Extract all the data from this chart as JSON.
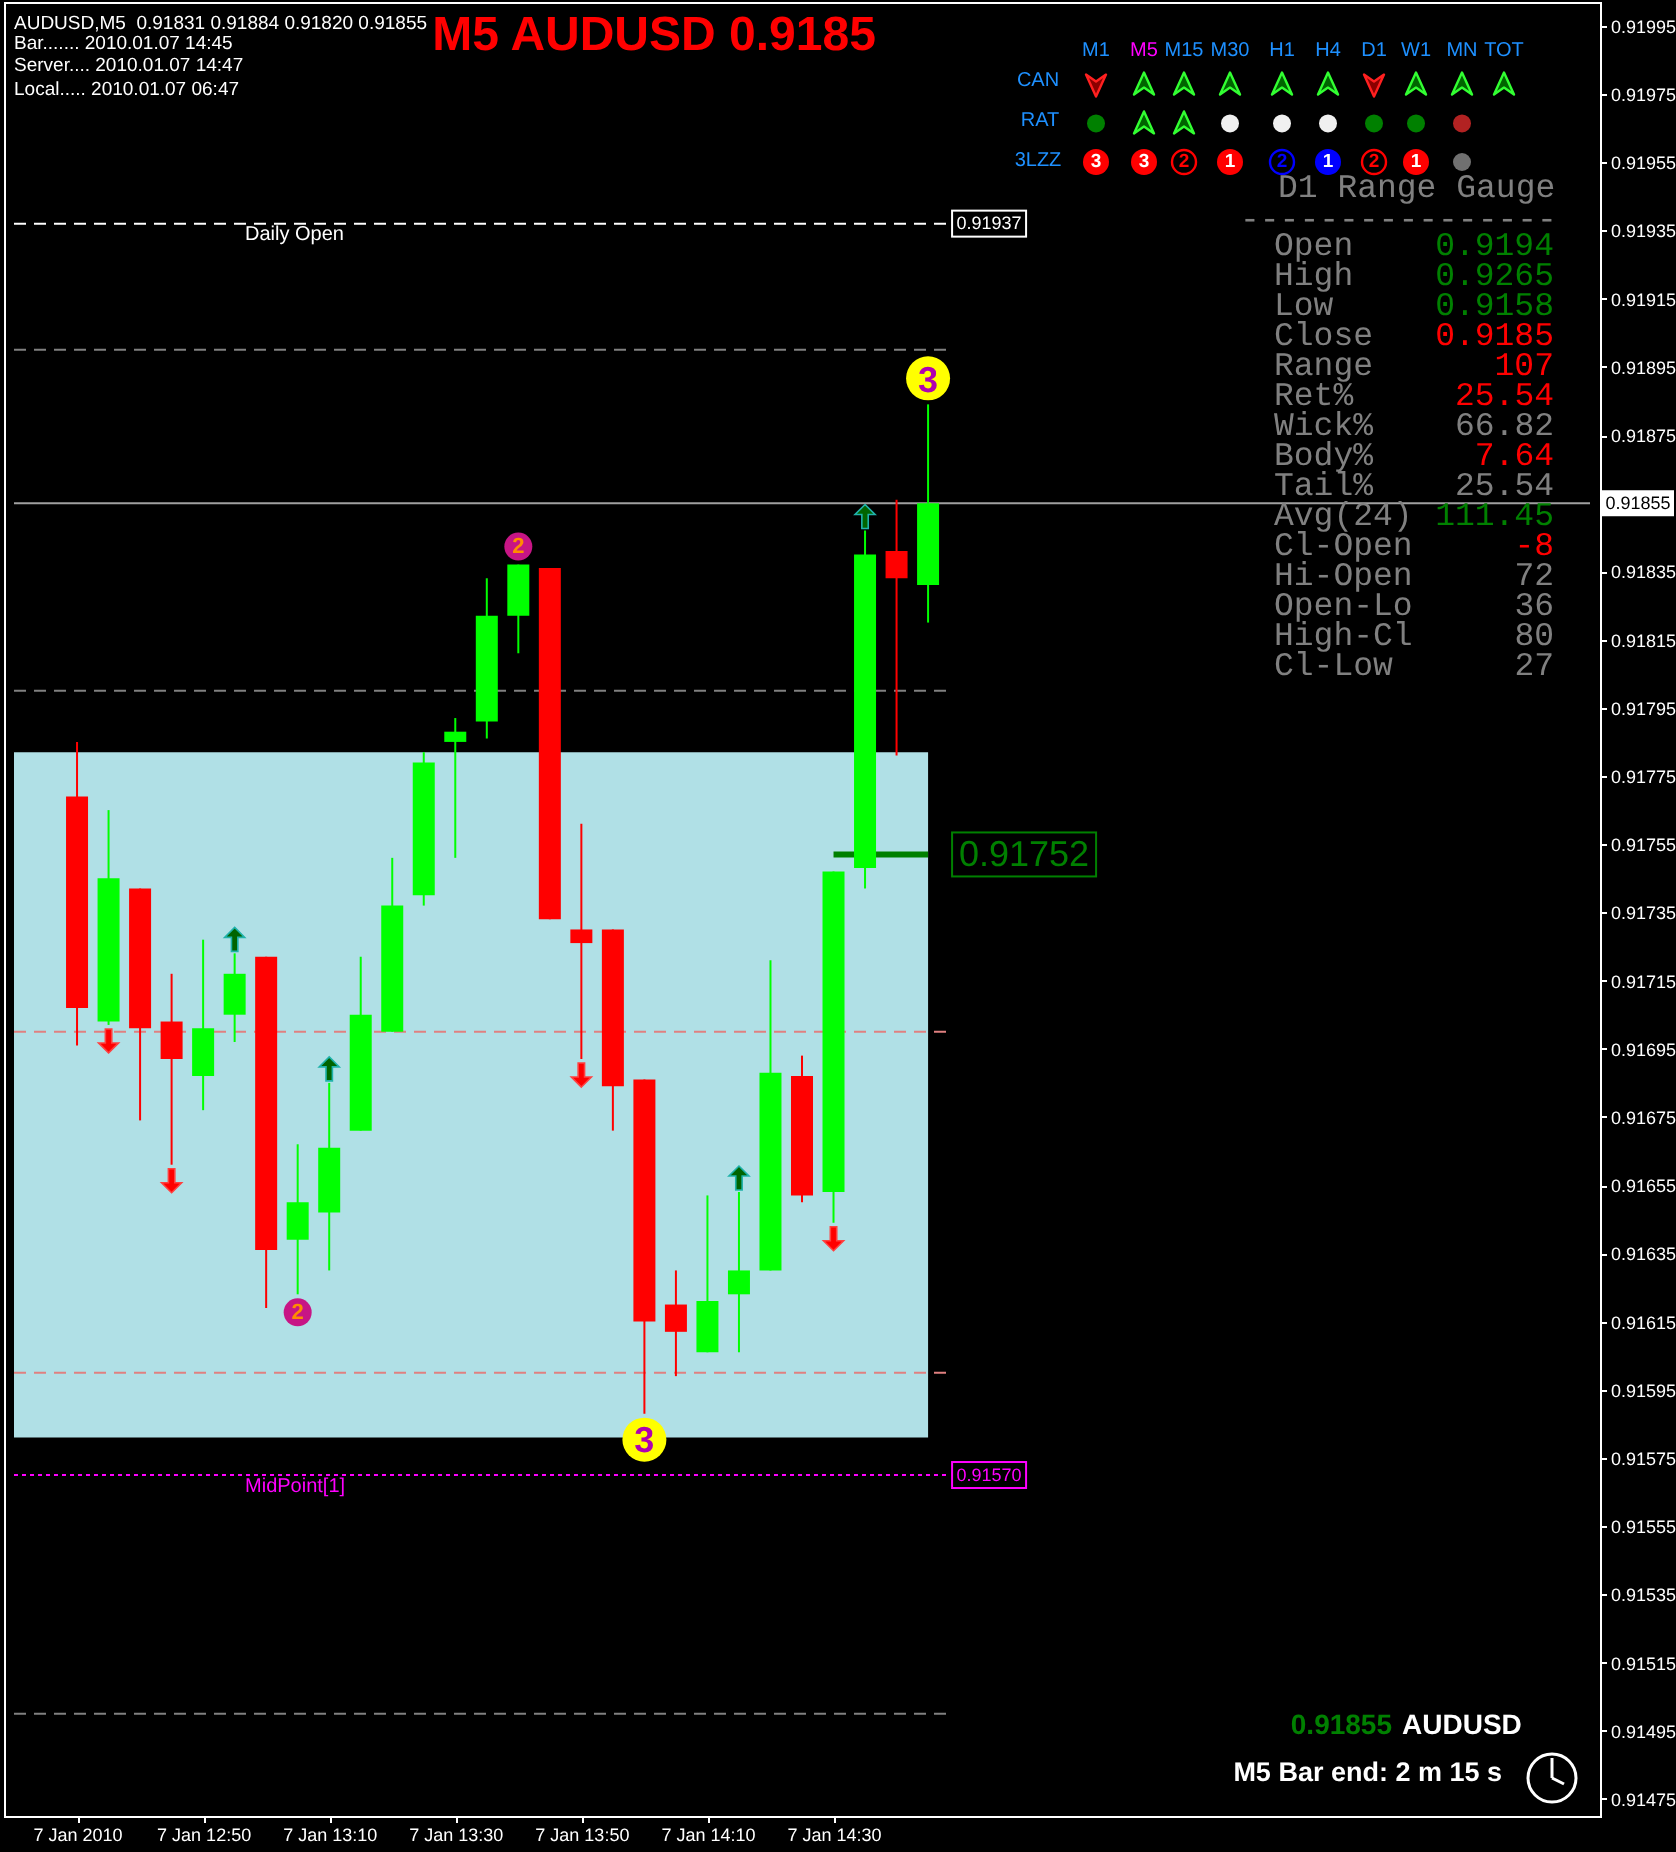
{
  "chart_data": {
    "type": "candlestick",
    "title": "M5 AUDUSD 0.9185",
    "x": [
      "2010-01-07T12:30",
      "2010-01-07T12:35",
      "2010-01-07T12:40",
      "2010-01-07T12:45",
      "2010-01-07T12:50",
      "2010-01-07T12:55",
      "2010-01-07T13:00",
      "2010-01-07T13:05",
      "2010-01-07T13:10",
      "2010-01-07T13:15",
      "2010-01-07T13:20",
      "2010-01-07T13:25",
      "2010-01-07T13:30",
      "2010-01-07T13:35",
      "2010-01-07T13:40",
      "2010-01-07T13:45",
      "2010-01-07T13:50",
      "2010-01-07T13:55",
      "2010-01-07T14:00",
      "2010-01-07T14:05",
      "2010-01-07T14:10",
      "2010-01-07T14:15",
      "2010-01-07T14:20",
      "2010-01-07T14:25",
      "2010-01-07T14:30",
      "2010-01-07T14:35",
      "2010-01-07T14:40",
      "2010-01-07T14:45"
    ],
    "ohlc": [
      [
        0.91769,
        0.91785,
        0.91696,
        0.91707
      ],
      [
        0.91703,
        0.91765,
        0.91702,
        0.91745
      ],
      [
        0.91742,
        0.91742,
        0.91674,
        0.91701
      ],
      [
        0.91703,
        0.91717,
        0.91661,
        0.91692
      ],
      [
        0.91687,
        0.91727,
        0.91677,
        0.91701
      ],
      [
        0.91705,
        0.91723,
        0.91697,
        0.91717
      ],
      [
        0.91722,
        0.91722,
        0.91619,
        0.91636
      ],
      [
        0.91639,
        0.91667,
        0.91623,
        0.9165
      ],
      [
        0.91647,
        0.91685,
        0.9163,
        0.91666
      ],
      [
        0.91671,
        0.91722,
        0.91671,
        0.91705
      ],
      [
        0.917,
        0.91751,
        0.917,
        0.91737
      ],
      [
        0.9174,
        0.91782,
        0.91737,
        0.91779
      ],
      [
        0.91785,
        0.91792,
        0.91751,
        0.91788
      ],
      [
        0.91791,
        0.91833,
        0.91786,
        0.91822
      ],
      [
        0.91822,
        0.91837,
        0.91811,
        0.91837
      ],
      [
        0.91836,
        0.91836,
        0.91733,
        0.91733
      ],
      [
        0.9173,
        0.91761,
        0.91692,
        0.91726
      ],
      [
        0.9173,
        0.9173,
        0.91671,
        0.91684
      ],
      [
        0.91686,
        0.91686,
        0.91588,
        0.91615
      ],
      [
        0.9162,
        0.9163,
        0.91599,
        0.91612
      ],
      [
        0.91606,
        0.91652,
        0.91606,
        0.91621
      ],
      [
        0.91623,
        0.91653,
        0.91606,
        0.9163
      ],
      [
        0.9163,
        0.91721,
        0.9163,
        0.91688
      ],
      [
        0.91687,
        0.91693,
        0.9165,
        0.91652
      ],
      [
        0.91653,
        0.91747,
        0.91644,
        0.91747
      ],
      [
        0.91748,
        0.91847,
        0.91742,
        0.9184
      ],
      [
        0.91841,
        0.91856,
        0.91781,
        0.91833
      ],
      [
        0.91831,
        0.91884,
        0.9182,
        0.91855
      ]
    ],
    "colors": [
      "#ff0000",
      "#00ff00",
      "#ff0000",
      "#ff0000",
      "#00ff00",
      "#00ff00",
      "#ff0000",
      "#00ff00",
      "#00ff00",
      "#00ff00",
      "#00ff00",
      "#00ff00",
      "#00ff00",
      "#00ff00",
      "#00ff00",
      "#ff0000",
      "#ff0000",
      "#ff0000",
      "#ff0000",
      "#ff0000",
      "#00ff00",
      "#00ff00",
      "#00ff00",
      "#ff0000",
      "#00ff00",
      "#00ff00",
      "#ff0000",
      "#00ff00"
    ],
    "series": [
      {
        "type": "line",
        "x": [
          "2010-01-07T14:30",
          "2010-01-07T14:45"
        ],
        "values": [
          0.91752,
          0.91752
        ],
        "color": "#008000"
      }
    ],
    "xlim": [
      "2010-01-07T12:20",
      "2010-01-07T16:30"
    ],
    "xticks": [
      {
        "value": "2010-01-07T12:30",
        "label": "7 Jan 2010"
      },
      {
        "value": "2010-01-07T12:50",
        "label": "7 Jan 12:50"
      },
      {
        "value": "2010-01-07T13:10",
        "label": "7 Jan 13:10"
      },
      {
        "value": "2010-01-07T13:30",
        "label": "7 Jan 13:30"
      },
      {
        "value": "2010-01-07T13:50",
        "label": "7 Jan 13:50"
      },
      {
        "value": "2010-01-07T14:10",
        "label": "7 Jan 14:10"
      },
      {
        "value": "2010-01-07T14:30",
        "label": "7 Jan 14:30"
      }
    ],
    "ylim": [
      0.9147,
      0.92002
    ],
    "yticks": [
      0.91475,
      0.91495,
      0.91515,
      0.91535,
      0.91555,
      0.91575,
      0.91595,
      0.91615,
      0.91635,
      0.91655,
      0.91675,
      0.91695,
      0.91715,
      0.91735,
      0.91755,
      0.91775,
      0.91795,
      0.91815,
      0.91835,
      0.91875,
      0.91895,
      0.91915,
      0.91935,
      0.91955,
      0.91975,
      0.91995
    ],
    "bands": [
      {
        "axis": "y",
        "from": 0.91581,
        "to": 0.91782,
        "color": "#b0e0e6"
      }
    ],
    "ref_lines": [
      {
        "axis": "y",
        "value": 0.91937,
        "label": "Daily Open",
        "color": "#ffffff",
        "line_style": "dashed"
      },
      {
        "axis": "y",
        "value": 0.9157,
        "label": "MidPoint[1]",
        "color": "#ff00ff",
        "line_style": "dotted"
      },
      {
        "axis": "y",
        "value": 0.919,
        "color": "#808080",
        "line_style": "dashed"
      },
      {
        "axis": "y",
        "value": 0.918,
        "color": "#808080",
        "line_style": "dashed"
      },
      {
        "axis": "y",
        "value": 0.917,
        "color": "#e08080",
        "line_style": "dashed"
      },
      {
        "axis": "y",
        "value": 0.916,
        "color": "#e08080",
        "line_style": "dashed"
      },
      {
        "axis": "y",
        "value": 0.915,
        "color": "#808080",
        "line_style": "dashed"
      },
      {
        "axis": "y",
        "value": 0.91855,
        "label": "0.91855",
        "color": "#a0a0a0",
        "line_style": "solid"
      }
    ],
    "annotations": [
      "AUDUSD,M5  0.91831 0.91884 0.91820 0.91855",
      "Bar....... 2010.01.07 14:45",
      "Server.... 2010.01.07 14:47",
      "Local..... 2010.01.07 06:47",
      "M1",
      "M5",
      "M15",
      "M30",
      "H1",
      "H4",
      "D1",
      "W1",
      "MN",
      "TOT",
      "CAN",
      "RAT",
      "3LZZ",
      "3",
      "3",
      "2",
      "1",
      "2",
      "1",
      "2",
      "1",
      "D1 Range Gauge",
      "----------------",
      "Open",
      "0.9194",
      "High",
      "0.9265",
      "Low",
      "0.9158",
      "Close",
      "0.9185",
      "Range",
      "107",
      "Ret%",
      "25.54",
      "Wick%",
      "66.82",
      "Body%",
      "7.64",
      "Tail%",
      "25.54",
      "Avg(24)",
      "111.45",
      "Cl-Open",
      "-8",
      "Hi-Open",
      "72",
      "Open-Lo",
      "36",
      "High-Cl",
      "80",
      "Cl-Low",
      "27",
      {
        "text": "0.91937",
        "x": "2010-01-07T14:45",
        "y": 0.91937
      },
      {
        "text": "0.91570",
        "x": "2010-01-07T14:45",
        "y": 0.9157
      },
      {
        "text": "0.91752",
        "x": "2010-01-07T14:45",
        "y": 0.91752
      },
      {
        "text": "3",
        "x": "2010-01-07T14:45",
        "y": 0.91884
      },
      {
        "text": "3",
        "x": "2010-01-07T14:00",
        "y": 0.91588
      },
      {
        "text": "2",
        "x": "2010-01-07T13:40",
        "y": 0.91837
      },
      {
        "text": "2",
        "x": "2010-01-07T13:05",
        "y": 0.91623
      },
      "0.91855",
      "AUDUSD",
      "M5 Bar end: 2 m 15 s"
    ]
  }
}
